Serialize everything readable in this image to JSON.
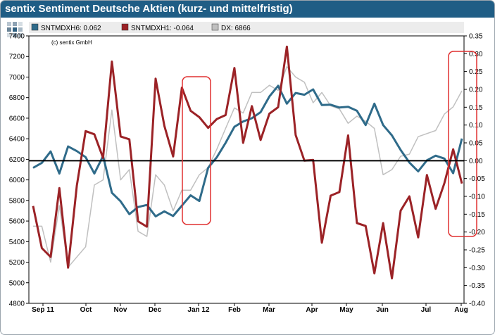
{
  "chart_data": {
    "type": "line",
    "title": "sentix Sentiment Deutsche Aktien (kurz- und mittelfristig)",
    "annotation": "(c) sentix GmbH",
    "x_labels": [
      "Sep 11",
      "Oct",
      "Nov",
      "Dec",
      "Jan 12",
      "Feb",
      "Mar",
      "Apr",
      "May",
      "Jun",
      "Jul",
      "Aug"
    ],
    "y_left": {
      "min": 4800,
      "max": 7400,
      "step": 200
    },
    "y_right": {
      "min": -0.4,
      "max": 0.35,
      "step": 0.05
    },
    "reference_value_right": 0.0,
    "legend": [
      {
        "name": "SNTMDXH6",
        "label": "SNTMDXH6: 0.062",
        "color": "#2f6b8a"
      },
      {
        "name": "SNTMDXH1",
        "label": "SNTMDXH1: -0.064",
        "color": "#9b2226"
      },
      {
        "name": "DX",
        "label": "DX: 6866",
        "color": "#c0c0c0"
      }
    ],
    "series": [
      {
        "name": "SNTMDXH6",
        "axis": "right",
        "color": "#2f6b8a",
        "values": [
          -0.02,
          -0.006,
          0.026,
          -0.036,
          0.04,
          0.027,
          0.01,
          -0.036,
          0.013,
          -0.09,
          -0.114,
          -0.15,
          -0.13,
          -0.124,
          -0.156,
          -0.142,
          -0.155,
          -0.126,
          -0.097,
          -0.113,
          -0.02,
          0.01,
          0.05,
          0.095,
          0.11,
          0.119,
          0.136,
          0.18,
          0.21,
          0.16,
          0.19,
          0.185,
          0.2,
          0.156,
          0.157,
          0.149,
          0.151,
          0.14,
          0.1,
          0.16,
          0.1,
          0.071,
          0.03,
          -0.005,
          -0.03,
          0.001,
          0.014,
          0.006,
          -0.035,
          0.062
        ]
      },
      {
        "name": "SNTMDXH1",
        "axis": "right",
        "color": "#9b2226",
        "values": [
          -0.127,
          -0.245,
          -0.27,
          -0.077,
          -0.3,
          -0.07,
          0.083,
          0.074,
          0.008,
          0.278,
          0.068,
          0.06,
          -0.17,
          -0.185,
          0.23,
          0.098,
          0.012,
          0.205,
          0.14,
          0.122,
          0.092,
          0.117,
          0.128,
          0.26,
          0.05,
          0.153,
          0.058,
          0.132,
          0.15,
          0.32,
          0.072,
          0.0,
          0.002,
          -0.23,
          -0.098,
          -0.088,
          0.071,
          -0.175,
          -0.183,
          -0.316,
          -0.175,
          -0.33,
          -0.14,
          -0.1,
          -0.215,
          -0.04,
          -0.135,
          -0.063,
          0.032,
          -0.064
        ]
      },
      {
        "name": "DX",
        "axis": "left",
        "color": "#c0c0c0",
        "values": [
          5550,
          5550,
          5200,
          5750,
          5150,
          5250,
          5350,
          5950,
          6000,
          6680,
          6000,
          6100,
          5500,
          5450,
          6050,
          5950,
          5700,
          5900,
          5900,
          6050,
          6120,
          6300,
          6500,
          6700,
          6650,
          6850,
          6850,
          6920,
          6870,
          7100,
          7000,
          6950,
          6750,
          6850,
          6720,
          6690,
          6550,
          6620,
          6570,
          6500,
          6050,
          6100,
          6230,
          6250,
          6420,
          6450,
          6480,
          6640,
          6710,
          6866
        ]
      }
    ]
  }
}
